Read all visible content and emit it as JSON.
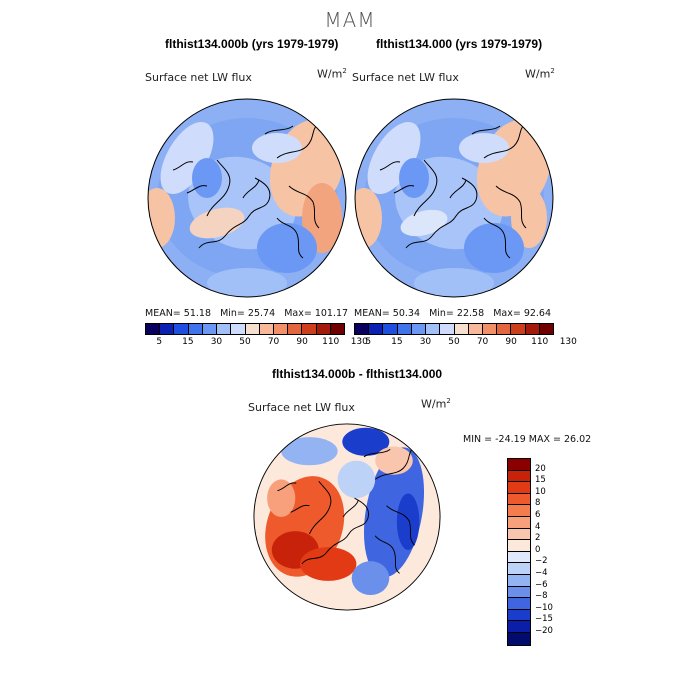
{
  "figure": {
    "season_title": "MAM",
    "variable": "Surface net LW flux",
    "units_base": "W/m",
    "units_exp": "2"
  },
  "panels": [
    {
      "title": "flthist134.000b (yrs 1979-1979)",
      "mean_label": "MEAN=",
      "mean": "51.18",
      "min_label": "Min=",
      "min": "25.74",
      "max_label": "Max=",
      "max": "101.17"
    },
    {
      "title": "flthist134.000 (yrs 1979-1979)",
      "mean_label": "MEAN=",
      "mean": "50.34",
      "min_label": "Min=",
      "min": "22.58",
      "max_label": "Max=",
      "max": "92.64"
    }
  ],
  "abs_colorbar": {
    "labels": [
      "5",
      "15",
      "30",
      "50",
      "70",
      "90",
      "110",
      "130"
    ],
    "colors": [
      "#08005c",
      "#0a21b4",
      "#1e4fe0",
      "#3f74ec",
      "#6b98f4",
      "#a2c0f8",
      "#cfdcfb",
      "#f6dfcf",
      "#f8b89a",
      "#f39068",
      "#e3663f",
      "#cc3e1c",
      "#a41a0b",
      "#700000"
    ]
  },
  "difference": {
    "title": "flthist134.000b - flthist134.000",
    "min_label": "MIN =",
    "min": "-24.19",
    "max_label": "MAX =",
    "max": "26.02"
  },
  "diff_colorbar": {
    "labels": [
      "20",
      "15",
      "10",
      "8",
      "6",
      "4",
      "2",
      "0",
      "−2",
      "−4",
      "−6",
      "−8",
      "−10",
      "−15",
      "−20"
    ],
    "colors": [
      "#8a0000",
      "#c8230a",
      "#e23a14",
      "#ee5a2c",
      "#f57d4d",
      "#f8a07c",
      "#fac5ad",
      "#fde9dc",
      "#dfe9fb",
      "#bcd2f7",
      "#93b3f2",
      "#6a90eb",
      "#3f66e0",
      "#1a3dcc",
      "#0a1eaa",
      "#020c6e"
    ]
  },
  "chart_data": [
    {
      "type": "heatmap",
      "projection": "north polar stereographic",
      "title": "flthist134.000b (yrs 1979-1979)",
      "variable": "Surface net LW flux",
      "units": "W/m2",
      "mean": 51.18,
      "min": 25.74,
      "max": 101.17,
      "contour_levels": [
        5,
        15,
        30,
        50,
        70,
        90,
        110,
        130
      ]
    },
    {
      "type": "heatmap",
      "projection": "north polar stereographic",
      "title": "flthist134.000 (yrs 1979-1979)",
      "variable": "Surface net LW flux",
      "units": "W/m2",
      "mean": 50.34,
      "min": 22.58,
      "max": 92.64,
      "contour_levels": [
        5,
        15,
        30,
        50,
        70,
        90,
        110,
        130
      ]
    },
    {
      "type": "heatmap",
      "projection": "north polar stereographic",
      "title": "flthist134.000b - flthist134.000",
      "variable": "Surface net LW flux",
      "units": "W/m2",
      "min": -24.19,
      "max": 26.02,
      "contour_levels": [
        -20,
        -15,
        -10,
        -8,
        -6,
        -4,
        -2,
        0,
        2,
        4,
        6,
        8,
        10,
        15,
        20
      ]
    }
  ]
}
